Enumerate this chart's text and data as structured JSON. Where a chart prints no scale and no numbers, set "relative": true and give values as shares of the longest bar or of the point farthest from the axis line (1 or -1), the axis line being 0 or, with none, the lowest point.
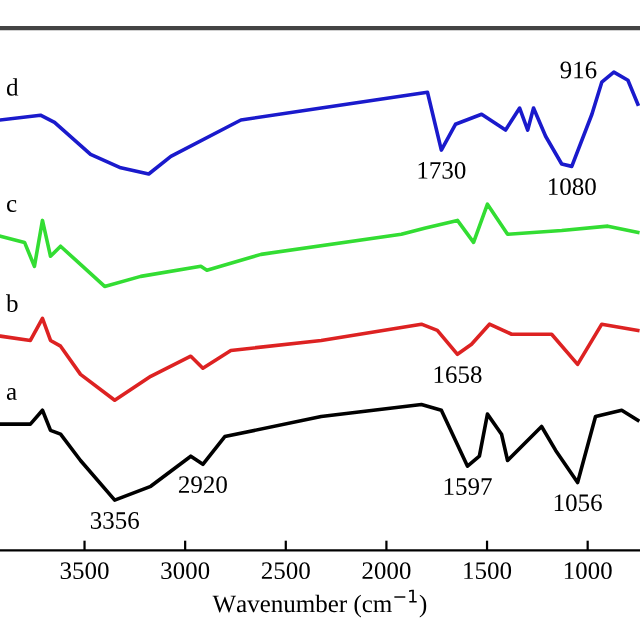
{
  "chart_data": {
    "type": "line",
    "relative": true,
    "xlabel": "Wavenumber (cm$^{−1}$)",
    "xlim": [
      3920,
      740
    ],
    "xticks": [
      3500,
      3000,
      2500,
      2000,
      1500,
      1000
    ],
    "tick_labels": "x",
    "grid": false,
    "legend": false,
    "marker": "none",
    "line_style": "solid",
    "series": [
      {
        "name": "d",
        "color": "#1a1acc",
        "x": [
          3918,
          3719,
          3649,
          3470,
          3320,
          3181,
          3071,
          2723,
          2324,
          1796,
          1727,
          1657,
          1527,
          1408,
          1338,
          1298,
          1269,
          1209,
          1129,
          1079,
          979,
          930,
          870,
          800,
          751
        ],
        "values": [
          0.9,
          0.91,
          0.895,
          0.828,
          0.8,
          0.787,
          0.824,
          0.9,
          0.925,
          0.958,
          0.837,
          0.891,
          0.912,
          0.879,
          0.925,
          0.879,
          0.925,
          0.866,
          0.808,
          0.803,
          0.912,
          0.979,
          1,
          0.983,
          0.933
        ]
      },
      {
        "name": "c",
        "color": "#33dd33",
        "x": [
          3918,
          3798,
          3749,
          3709,
          3669,
          3619,
          3520,
          3400,
          3221,
          2922,
          2892,
          2623,
          1926,
          1806,
          1647,
          1567,
          1498,
          1398,
          1129,
          900,
          751
        ],
        "values": [
          0.657,
          0.644,
          0.594,
          0.69,
          0.615,
          0.636,
          0.598,
          0.552,
          0.573,
          0.594,
          0.586,
          0.619,
          0.661,
          0.674,
          0.69,
          0.644,
          0.724,
          0.661,
          0.669,
          0.678,
          0.665
        ]
      },
      {
        "name": "b",
        "color": "#dd2222",
        "x": [
          3918,
          3769,
          3709,
          3669,
          3619,
          3520,
          3350,
          3171,
          2972,
          2912,
          2773,
          2324,
          1826,
          1747,
          1647,
          1577,
          1488,
          1378,
          1179,
          1050,
          930,
          751
        ],
        "values": [
          0.448,
          0.439,
          0.485,
          0.439,
          0.427,
          0.368,
          0.314,
          0.364,
          0.406,
          0.381,
          0.418,
          0.439,
          0.473,
          0.46,
          0.41,
          0.431,
          0.473,
          0.452,
          0.452,
          0.389,
          0.473,
          0.46
        ]
      },
      {
        "name": "a",
        "color": "#000000",
        "x": [
          3918,
          3769,
          3709,
          3669,
          3619,
          3520,
          3350,
          3171,
          2972,
          2912,
          2803,
          2324,
          1826,
          1727,
          1597,
          1538,
          1498,
          1428,
          1398,
          1229,
          1159,
          1050,
          961,
          831,
          751
        ],
        "values": [
          0.264,
          0.264,
          0.293,
          0.251,
          0.243,
          0.188,
          0.105,
          0.134,
          0.197,
          0.18,
          0.238,
          0.28,
          0.305,
          0.293,
          0.176,
          0.197,
          0.285,
          0.243,
          0.188,
          0.259,
          0.209,
          0.142,
          0.28,
          0.293,
          0.272
        ]
      }
    ],
    "annotations": [
      {
        "text": "1730",
        "x": 1727,
        "y": 0.837
      },
      {
        "text": "1080",
        "x": 1079,
        "y": 0.803
      },
      {
        "text": "916",
        "x": 870,
        "y": 1
      },
      {
        "text": "1658",
        "x": 1647,
        "y": 0.41
      },
      {
        "text": "3356",
        "x": 3350,
        "y": 0.105
      },
      {
        "text": "2920",
        "x": 2912,
        "y": 0.18
      },
      {
        "text": "1597",
        "x": 1597,
        "y": 0.176
      },
      {
        "text": "1056",
        "x": 1050,
        "y": 0.142
      }
    ]
  }
}
